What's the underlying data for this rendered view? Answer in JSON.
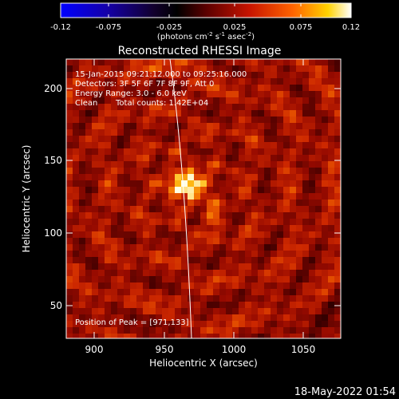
{
  "colorbar": {
    "ticks": [
      "-0.12",
      "-0.075",
      "-0.025",
      "0.025",
      "0.075",
      "0.12"
    ],
    "unit_main": "(photons cm",
    "unit_sup1": "-2",
    "unit_mid1": " s",
    "unit_sup2": "-1",
    "unit_mid2": " asec",
    "unit_sup3": "-2",
    "unit_end": ")"
  },
  "title": "Reconstructed RHESSI Image",
  "annotations": {
    "line1": "15-Jan-2015 09:21:12.000 to 09:25:16.000",
    "line2": "Detectors: 3F 5F 6F 7F 8F 9F, Att 0",
    "line3": "Energy Range: 3.0 - 6.0 keV",
    "line4_a": "Clean",
    "line4_b": "Total counts: 1.42E+04",
    "peak": "Position of Peak = [971,133]"
  },
  "axes": {
    "xlabel": "Heliocentric X (arcsec)",
    "ylabel": "Heliocentric Y (arcsec)",
    "xticks": [
      "900",
      "950",
      "1000",
      "1050"
    ],
    "yticks": [
      "50",
      "100",
      "150",
      "200"
    ]
  },
  "timestamp": "18-May-2022 01:54",
  "colors": {
    "colormap": [
      "#0000ff",
      "#1a0064",
      "#000000",
      "#7a0000",
      "#e60000",
      "#ff7800",
      "#ffd700",
      "#ffffff"
    ]
  }
}
